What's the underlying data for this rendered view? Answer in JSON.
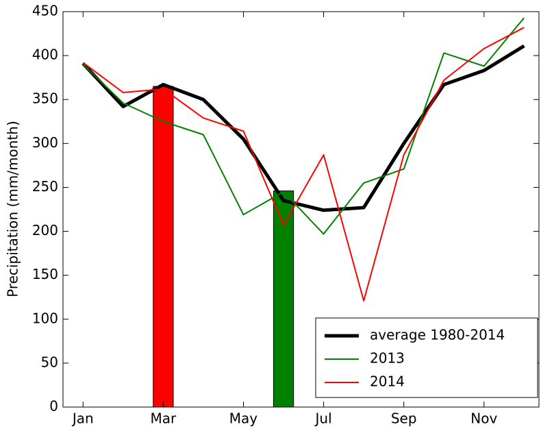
{
  "chart_data": {
    "type": "line",
    "y_label": "Precipitation (mm/month)",
    "x": [
      1,
      2,
      3,
      4,
      5,
      6,
      7,
      8,
      9,
      10,
      11,
      12
    ],
    "series": [
      {
        "name": "average 1980-2014",
        "color": "#000000",
        "linewidth": 5,
        "values": [
          391,
          342,
          367,
          350,
          305,
          235,
          224,
          227,
          300,
          367,
          383,
          411
        ]
      },
      {
        "name": "2013",
        "color": "#008000",
        "linewidth": 2,
        "values": [
          390,
          346,
          325,
          310,
          219,
          245,
          197,
          255,
          271,
          403,
          388,
          443
        ]
      },
      {
        "name": "2014",
        "color": "#ff0000",
        "linewidth": 2,
        "values": [
          392,
          358,
          362,
          329,
          314,
          207,
          287,
          121,
          287,
          372,
          408,
          432
        ]
      }
    ],
    "bars": [
      {
        "x": 3,
        "value": 365,
        "color": "#ff0000"
      },
      {
        "x": 6,
        "value": 246,
        "color": "#008000"
      }
    ],
    "xlim": [
      0.5,
      12.37
    ],
    "ylim": [
      0,
      450
    ],
    "xticks": [
      {
        "value": 1,
        "label": "Jan"
      },
      {
        "value": 3,
        "label": "Mar"
      },
      {
        "value": 5,
        "label": "May"
      },
      {
        "value": 7,
        "label": "Jul"
      },
      {
        "value": 9,
        "label": "Sep"
      },
      {
        "value": 11,
        "label": "Nov"
      }
    ],
    "yticks": [
      0,
      50,
      100,
      150,
      200,
      250,
      300,
      350,
      400,
      450
    ],
    "legend": "lower right"
  }
}
